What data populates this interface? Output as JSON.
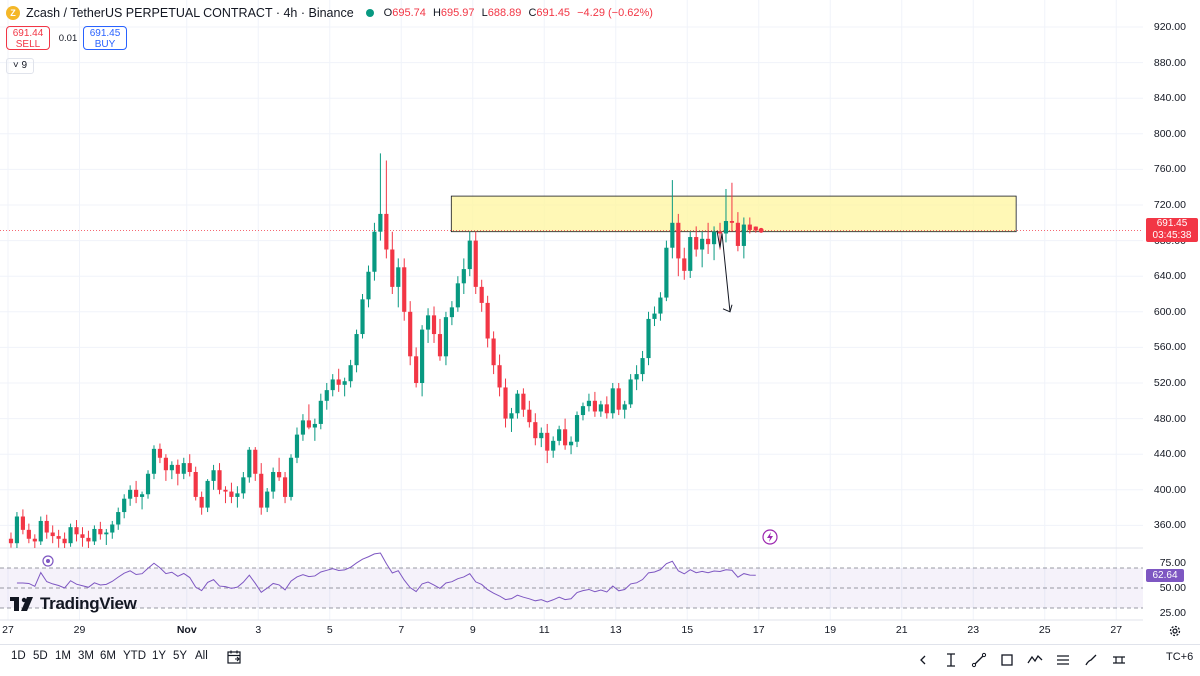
{
  "header": {
    "coin_glyph": "Z",
    "title": "Zcash / TetherUS PERPETUAL CONTRACT · 4h · Binance",
    "open_label": "O",
    "open": "695.74",
    "high_label": "H",
    "high": "695.97",
    "low_label": "L",
    "low": "688.89",
    "close_label": "C",
    "close": "691.45",
    "change": "−4.29 (−0.62%)"
  },
  "trade": {
    "sell_price": "691.44",
    "sell_label": "SELL",
    "spread": "0.01",
    "buy_price": "691.45",
    "buy_label": "BUY"
  },
  "indicators_toggle": "9",
  "last_price": {
    "price": "691.45",
    "countdown": "03:45:38"
  },
  "rsi_value": "62.64",
  "logo_text": "TradingView",
  "utc_label": "TC+6",
  "range_buttons": [
    "1D",
    "5D",
    "1M",
    "3M",
    "6M",
    "YTD",
    "1Y",
    "5Y",
    "All"
  ],
  "colors": {
    "up": "#089981",
    "down": "#f23645",
    "rsi": "#7e57c2",
    "zone_fill": "#fff59d"
  },
  "chart_data": {
    "type": "candlestick",
    "title": "Zcash / TetherUS PERPETUAL CONTRACT · 4h · Binance",
    "timeframe": "4h",
    "price_axis_ticks": [
      920,
      880,
      840,
      800,
      760,
      720,
      680,
      640,
      600,
      560,
      520,
      480,
      440,
      400,
      360
    ],
    "price_axis_labels": [
      "920.00",
      "880.00",
      "840.00",
      "800.00",
      "760.00",
      "720.00",
      "680.00",
      "640.00",
      "600.00",
      "560.00",
      "520.00",
      "480.00",
      "440.00",
      "400.00",
      "360.00"
    ],
    "ylim": [
      340,
      935
    ],
    "time_axis_labels": [
      "27",
      "29",
      "Nov",
      "3",
      "5",
      "7",
      "9",
      "11",
      "13",
      "15",
      "17",
      "19",
      "21",
      "23",
      "25",
      "27"
    ],
    "time_axis_day_index": [
      0,
      2,
      5,
      7,
      9,
      11,
      13,
      15,
      17,
      19,
      21,
      23,
      25,
      27,
      29,
      31
    ],
    "candles_per_day": 6,
    "candles": [
      [
        345,
        352,
        335,
        340
      ],
      [
        340,
        375,
        330,
        370
      ],
      [
        370,
        378,
        350,
        355
      ],
      [
        355,
        362,
        340,
        345
      ],
      [
        345,
        350,
        330,
        342
      ],
      [
        342,
        370,
        338,
        365
      ],
      [
        365,
        372,
        345,
        352
      ],
      [
        352,
        360,
        340,
        348
      ],
      [
        348,
        355,
        335,
        345
      ],
      [
        345,
        352,
        332,
        340
      ],
      [
        340,
        362,
        336,
        358
      ],
      [
        358,
        366,
        342,
        350
      ],
      [
        350,
        358,
        336,
        346
      ],
      [
        346,
        354,
        334,
        342
      ],
      [
        342,
        360,
        338,
        356
      ],
      [
        356,
        364,
        344,
        350
      ],
      [
        350,
        356,
        338,
        352
      ],
      [
        352,
        365,
        345,
        361
      ],
      [
        361,
        380,
        355,
        375
      ],
      [
        375,
        395,
        368,
        390
      ],
      [
        390,
        405,
        382,
        400
      ],
      [
        400,
        410,
        385,
        392
      ],
      [
        392,
        398,
        378,
        395
      ],
      [
        395,
        422,
        390,
        418
      ],
      [
        418,
        450,
        412,
        446
      ],
      [
        446,
        452,
        430,
        436
      ],
      [
        436,
        440,
        410,
        422
      ],
      [
        422,
        432,
        412,
        428
      ],
      [
        428,
        434,
        405,
        418
      ],
      [
        418,
        436,
        412,
        430
      ],
      [
        430,
        440,
        415,
        420
      ],
      [
        420,
        426,
        388,
        392
      ],
      [
        392,
        398,
        372,
        380
      ],
      [
        380,
        412,
        375,
        410
      ],
      [
        410,
        428,
        400,
        422
      ],
      [
        422,
        430,
        395,
        400
      ],
      [
        400,
        404,
        385,
        398
      ],
      [
        398,
        408,
        385,
        392
      ],
      [
        392,
        404,
        380,
        396
      ],
      [
        396,
        420,
        390,
        414
      ],
      [
        414,
        448,
        408,
        445
      ],
      [
        445,
        448,
        410,
        418
      ],
      [
        418,
        430,
        372,
        380
      ],
      [
        380,
        402,
        375,
        398
      ],
      [
        398,
        425,
        390,
        420
      ],
      [
        420,
        436,
        410,
        414
      ],
      [
        414,
        420,
        385,
        392
      ],
      [
        392,
        440,
        388,
        436
      ],
      [
        436,
        470,
        430,
        462
      ],
      [
        462,
        485,
        455,
        478
      ],
      [
        478,
        496,
        468,
        470
      ],
      [
        470,
        480,
        455,
        474
      ],
      [
        474,
        508,
        468,
        500
      ],
      [
        500,
        520,
        490,
        512
      ],
      [
        512,
        530,
        505,
        524
      ],
      [
        524,
        536,
        510,
        518
      ],
      [
        518,
        526,
        505,
        522
      ],
      [
        522,
        546,
        515,
        540
      ],
      [
        540,
        580,
        532,
        575
      ],
      [
        575,
        620,
        570,
        614
      ],
      [
        614,
        652,
        605,
        645
      ],
      [
        645,
        700,
        635,
        690
      ],
      [
        690,
        778,
        680,
        710
      ],
      [
        710,
        770,
        660,
        670
      ],
      [
        670,
        690,
        620,
        628
      ],
      [
        628,
        660,
        605,
        650
      ],
      [
        650,
        660,
        590,
        600
      ],
      [
        600,
        612,
        540,
        550
      ],
      [
        550,
        560,
        515,
        520
      ],
      [
        520,
        585,
        505,
        580
      ],
      [
        580,
        604,
        565,
        596
      ],
      [
        596,
        606,
        565,
        575
      ],
      [
        575,
        592,
        545,
        550
      ],
      [
        550,
        600,
        540,
        594
      ],
      [
        594,
        612,
        585,
        605
      ],
      [
        605,
        640,
        600,
        632
      ],
      [
        632,
        660,
        620,
        648
      ],
      [
        648,
        690,
        640,
        680
      ],
      [
        680,
        690,
        620,
        628
      ],
      [
        628,
        636,
        600,
        610
      ],
      [
        610,
        618,
        560,
        570
      ],
      [
        570,
        578,
        530,
        540
      ],
      [
        540,
        552,
        505,
        515
      ],
      [
        515,
        525,
        470,
        480
      ],
      [
        480,
        492,
        465,
        486
      ],
      [
        486,
        512,
        480,
        508
      ],
      [
        508,
        514,
        482,
        490
      ],
      [
        490,
        500,
        470,
        476
      ],
      [
        476,
        486,
        450,
        458
      ],
      [
        458,
        470,
        448,
        464
      ],
      [
        464,
        474,
        430,
        444
      ],
      [
        444,
        460,
        436,
        455
      ],
      [
        455,
        472,
        450,
        468
      ],
      [
        468,
        480,
        445,
        450
      ],
      [
        450,
        460,
        440,
        454
      ],
      [
        454,
        488,
        448,
        484
      ],
      [
        484,
        498,
        478,
        494
      ],
      [
        494,
        508,
        488,
        500
      ],
      [
        500,
        510,
        482,
        488
      ],
      [
        488,
        500,
        482,
        496
      ],
      [
        496,
        505,
        480,
        486
      ],
      [
        486,
        520,
        480,
        514
      ],
      [
        514,
        520,
        484,
        490
      ],
      [
        490,
        500,
        480,
        496
      ],
      [
        496,
        530,
        492,
        524
      ],
      [
        524,
        540,
        512,
        530
      ],
      [
        530,
        556,
        522,
        548
      ],
      [
        548,
        600,
        540,
        592
      ],
      [
        592,
        606,
        584,
        598
      ],
      [
        598,
        622,
        590,
        616
      ],
      [
        616,
        680,
        612,
        672
      ],
      [
        672,
        748,
        660,
        700
      ],
      [
        700,
        710,
        640,
        660
      ],
      [
        660,
        672,
        636,
        646
      ],
      [
        646,
        690,
        638,
        684
      ],
      [
        684,
        696,
        662,
        670
      ],
      [
        670,
        690,
        650,
        682
      ],
      [
        682,
        700,
        665,
        676
      ],
      [
        676,
        696,
        658,
        690
      ],
      [
        690,
        700,
        670,
        688
      ],
      [
        688,
        738,
        678,
        702
      ],
      [
        702,
        745,
        690,
        700
      ],
      [
        700,
        712,
        668,
        674
      ],
      [
        674,
        706,
        660,
        698
      ],
      [
        698,
        706,
        688,
        692
      ],
      [
        695.74,
        695.97,
        688.89,
        691.45
      ]
    ],
    "resistance_zone": {
      "top": 730,
      "bottom": 690,
      "start_day_index": 12.4,
      "end_day_index": 28.2
    },
    "projection_path": [
      [
        717,
        691
      ],
      [
        720,
        672
      ],
      [
        722,
        688
      ],
      [
        730,
        600
      ]
    ],
    "last_price": 691.45,
    "rsi": {
      "length": 14,
      "last": 62.64,
      "upper_band": 70,
      "lower_band": 30,
      "axis_labels": [
        "75.00",
        "50.00",
        "25.00"
      ],
      "axis_values": [
        75,
        50,
        25
      ]
    }
  }
}
